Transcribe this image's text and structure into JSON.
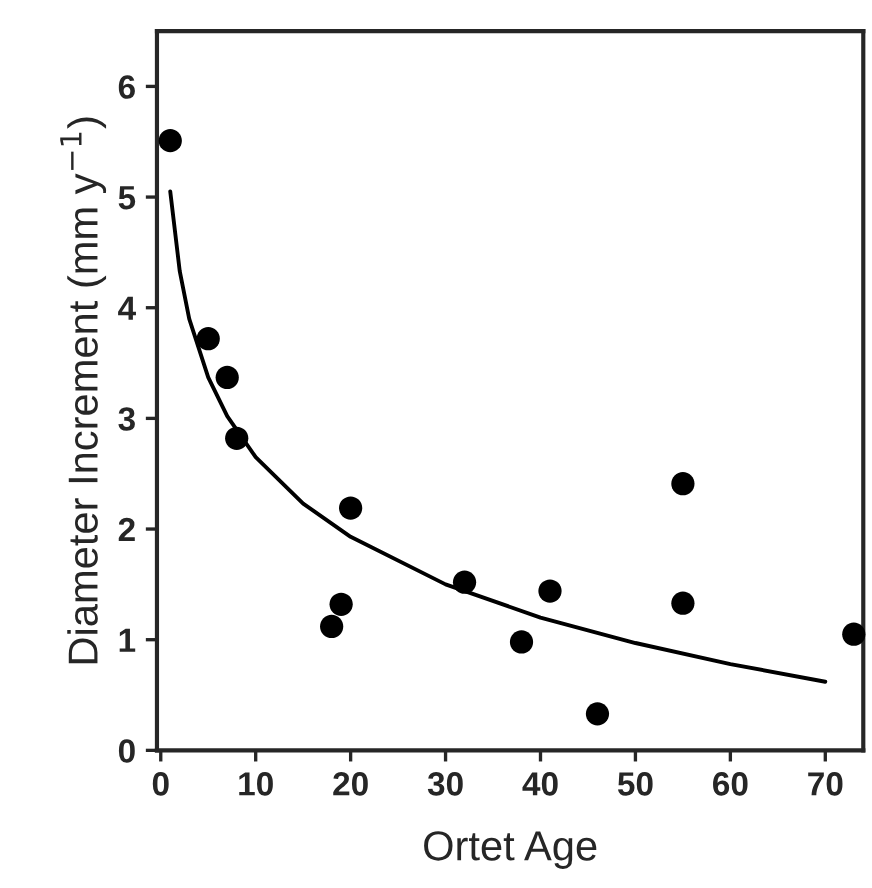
{
  "chart_data": {
    "type": "scatter",
    "xlabel": "Ortet Age",
    "ylabel": "Diameter Increment (mm y$^{−1}$)",
    "xlim": [
      -0.4,
      74
    ],
    "xticks": [
      0,
      10,
      20,
      30,
      40,
      50,
      60,
      70
    ],
    "ylim": [
      0,
      6.5
    ],
    "yticks": [
      0,
      1,
      2,
      3,
      4,
      5,
      6
    ],
    "grid": false,
    "legend": false,
    "series": [
      {
        "color": "#000000",
        "marker": "circle",
        "x": [
          1,
          5,
          7,
          8,
          18,
          19,
          20,
          32,
          38,
          41,
          46,
          55,
          55,
          73
        ],
        "values": [
          5.51,
          3.72,
          3.37,
          2.82,
          1.12,
          1.32,
          2.19,
          1.52,
          0.98,
          1.44,
          0.33,
          2.41,
          1.33,
          1.05
        ]
      },
      {
        "type": "line",
        "color": "#000000",
        "marker": "none",
        "line_style": "solid",
        "x": [
          1,
          2,
          3,
          5,
          7,
          10,
          15,
          20,
          30,
          40,
          50,
          60,
          70
        ],
        "values": [
          5.05,
          4.33,
          3.9,
          3.37,
          3.02,
          2.65,
          2.23,
          1.93,
          1.5,
          1.2,
          0.97,
          0.78,
          0.62
        ]
      }
    ]
  }
}
